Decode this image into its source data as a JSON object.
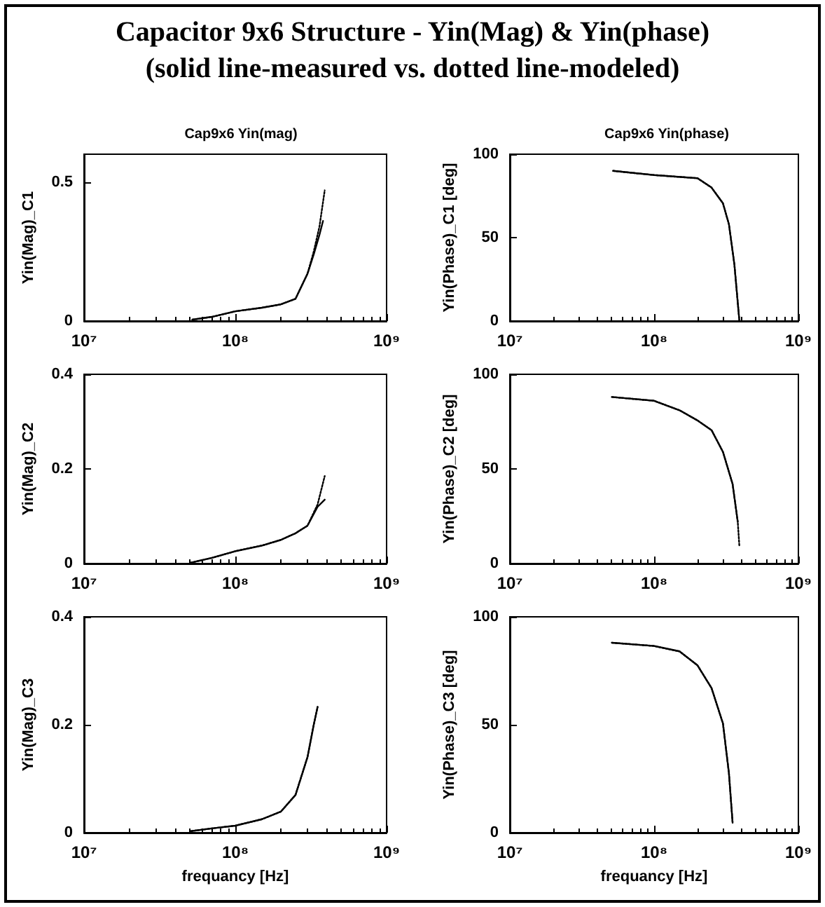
{
  "chart_data": [
    {
      "type": "other",
      "title": "Capacitor 9x6 Structure - Yin(Mag) & Yin(phase)",
      "subtitle": "(solid line-measured vs. dotted line-modeled)"
    },
    {
      "type": "line",
      "title": "Cap9x6 Yin(mag)",
      "ylabel": "Yin(Mag)_C1",
      "log": "x",
      "grid": false,
      "marker": "none",
      "xlim": [
        10000000,
        1000000000
      ],
      "xticks": [
        {
          "value": 10000000,
          "label": "10⁷"
        },
        {
          "value": 100000000,
          "label": "10⁸"
        },
        {
          "value": 1000000000,
          "label": "10⁹"
        }
      ],
      "ylim": [
        0,
        0.6
      ],
      "yticks": [
        0,
        0.5
      ],
      "series": [
        {
          "color": "#000000",
          "line_style": "solid",
          "x": [
            52000000,
            70000000,
            100000000,
            150000000,
            200000000,
            250000000,
            300000000,
            330000000,
            360000000,
            380000000
          ],
          "values": [
            0.005,
            0.015,
            0.035,
            0.048,
            0.06,
            0.08,
            0.17,
            0.24,
            0.31,
            0.36
          ]
        },
        {
          "color": "#000000",
          "line_style": "dotted",
          "x": [
            52000000,
            70000000,
            100000000,
            150000000,
            200000000,
            250000000,
            300000000,
            330000000,
            360000000,
            390000000
          ],
          "values": [
            0.005,
            0.015,
            0.035,
            0.048,
            0.06,
            0.08,
            0.17,
            0.25,
            0.34,
            0.47
          ]
        }
      ]
    },
    {
      "type": "line",
      "title": "Cap9x6 Yin(phase)",
      "ylabel": "Yin(Phase)_C1 [deg]",
      "log": "x",
      "grid": false,
      "marker": "none",
      "xlim": [
        10000000,
        1000000000
      ],
      "xticks": [
        {
          "value": 10000000,
          "label": "10⁷"
        },
        {
          "value": 100000000,
          "label": "10⁸"
        },
        {
          "value": 1000000000,
          "label": "10⁹"
        }
      ],
      "ylim": [
        0,
        100
      ],
      "yticks": [
        0,
        50,
        100
      ],
      "series": [
        {
          "color": "#000000",
          "line_style": "solid",
          "x": [
            52000000,
            100000000,
            200000000,
            250000000,
            300000000,
            330000000,
            360000000,
            390000000
          ],
          "values": [
            90,
            87.5,
            85.6,
            80,
            70.6,
            58,
            34,
            0
          ]
        },
        {
          "color": "#000000",
          "line_style": "dotted",
          "x": [
            52000000,
            100000000,
            200000000,
            250000000,
            300000000,
            330000000,
            360000000,
            390000000
          ],
          "values": [
            90,
            87.5,
            85.6,
            80,
            70.6,
            58,
            34,
            0
          ]
        }
      ]
    },
    {
      "type": "line",
      "ylabel": "Yin(Mag)_C2",
      "log": "x",
      "grid": false,
      "marker": "none",
      "xlim": [
        10000000,
        1000000000
      ],
      "xticks": [
        {
          "value": 10000000,
          "label": "10⁷"
        },
        {
          "value": 100000000,
          "label": "10⁸"
        },
        {
          "value": 1000000000,
          "label": "10⁹"
        }
      ],
      "ylim": [
        0,
        0.4
      ],
      "yticks": [
        0,
        0.2,
        0.4
      ],
      "series": [
        {
          "color": "#000000",
          "line_style": "solid",
          "x": [
            51000000,
            70000000,
            100000000,
            150000000,
            200000000,
            250000000,
            300000000,
            350000000,
            390000000
          ],
          "values": [
            0.002,
            0.012,
            0.026,
            0.038,
            0.05,
            0.064,
            0.08,
            0.12,
            0.135
          ]
        },
        {
          "color": "#000000",
          "line_style": "dotted",
          "x": [
            51000000,
            70000000,
            100000000,
            150000000,
            200000000,
            250000000,
            300000000,
            350000000,
            390000000
          ],
          "values": [
            0.002,
            0.012,
            0.026,
            0.038,
            0.05,
            0.064,
            0.08,
            0.125,
            0.185
          ]
        }
      ]
    },
    {
      "type": "line",
      "ylabel": "Yin(Phase)_C2 [deg]",
      "log": "x",
      "grid": false,
      "marker": "none",
      "xlim": [
        10000000,
        1000000000
      ],
      "xticks": [
        {
          "value": 10000000,
          "label": "10⁷"
        },
        {
          "value": 100000000,
          "label": "10⁸"
        },
        {
          "value": 1000000000,
          "label": "10⁹"
        }
      ],
      "ylim": [
        0,
        100
      ],
      "yticks": [
        0,
        50,
        100
      ],
      "series": [
        {
          "color": "#000000",
          "line_style": "solid",
          "x": [
            51000000,
            100000000,
            150000000,
            200000000,
            250000000,
            300000000,
            350000000,
            380000000
          ],
          "values": [
            88,
            86,
            81,
            75.6,
            70.5,
            59,
            42,
            22
          ]
        },
        {
          "color": "#000000",
          "line_style": "dotted",
          "x": [
            51000000,
            100000000,
            150000000,
            200000000,
            250000000,
            300000000,
            350000000,
            380000000,
            390000000
          ],
          "values": [
            88,
            86,
            81,
            75.6,
            70.5,
            59,
            42,
            22,
            9
          ]
        }
      ]
    },
    {
      "type": "line",
      "xlabel": "frequancy [Hz]",
      "ylabel": "Yin(Mag)_C3",
      "log": "x",
      "grid": false,
      "marker": "none",
      "xlim": [
        10000000,
        1000000000
      ],
      "xticks": [
        {
          "value": 10000000,
          "label": "10⁷"
        },
        {
          "value": 100000000,
          "label": "10⁸"
        },
        {
          "value": 1000000000,
          "label": "10⁹"
        }
      ],
      "ylim": [
        0,
        0.4
      ],
      "yticks": [
        0,
        0.2,
        0.4
      ],
      "series": [
        {
          "color": "#000000",
          "line_style": "solid",
          "x": [
            51000000,
            70000000,
            100000000,
            150000000,
            200000000,
            250000000,
            300000000,
            330000000,
            350000000
          ],
          "values": [
            0.003,
            0.008,
            0.013,
            0.025,
            0.039,
            0.07,
            0.14,
            0.2,
            0.233
          ]
        },
        {
          "color": "#000000",
          "line_style": "dotted",
          "x": [
            51000000,
            70000000,
            100000000,
            150000000,
            200000000,
            250000000,
            300000000,
            330000000,
            350000000
          ],
          "values": [
            0.003,
            0.008,
            0.013,
            0.025,
            0.039,
            0.07,
            0.14,
            0.2,
            0.233
          ]
        }
      ]
    },
    {
      "type": "line",
      "xlabel": "frequancy [Hz]",
      "ylabel": "Yin(Phase)_C3 [deg]",
      "log": "x",
      "grid": false,
      "marker": "none",
      "xlim": [
        10000000,
        1000000000
      ],
      "xticks": [
        {
          "value": 10000000,
          "label": "10⁷"
        },
        {
          "value": 100000000,
          "label": "10⁸"
        },
        {
          "value": 1000000000,
          "label": "10⁹"
        }
      ],
      "ylim": [
        0,
        100
      ],
      "yticks": [
        0,
        50,
        100
      ],
      "series": [
        {
          "color": "#000000",
          "line_style": "solid",
          "x": [
            51000000,
            100000000,
            150000000,
            200000000,
            250000000,
            300000000,
            330000000,
            350000000
          ],
          "values": [
            88,
            86.5,
            84,
            77.5,
            67,
            50.6,
            27.6,
            4.6
          ]
        },
        {
          "color": "#000000",
          "line_style": "dotted",
          "x": [
            51000000,
            100000000,
            150000000,
            200000000,
            250000000,
            300000000,
            330000000,
            350000000
          ],
          "values": [
            88,
            86.5,
            84,
            77.5,
            67,
            50.6,
            27.6,
            4.6
          ]
        }
      ]
    }
  ]
}
